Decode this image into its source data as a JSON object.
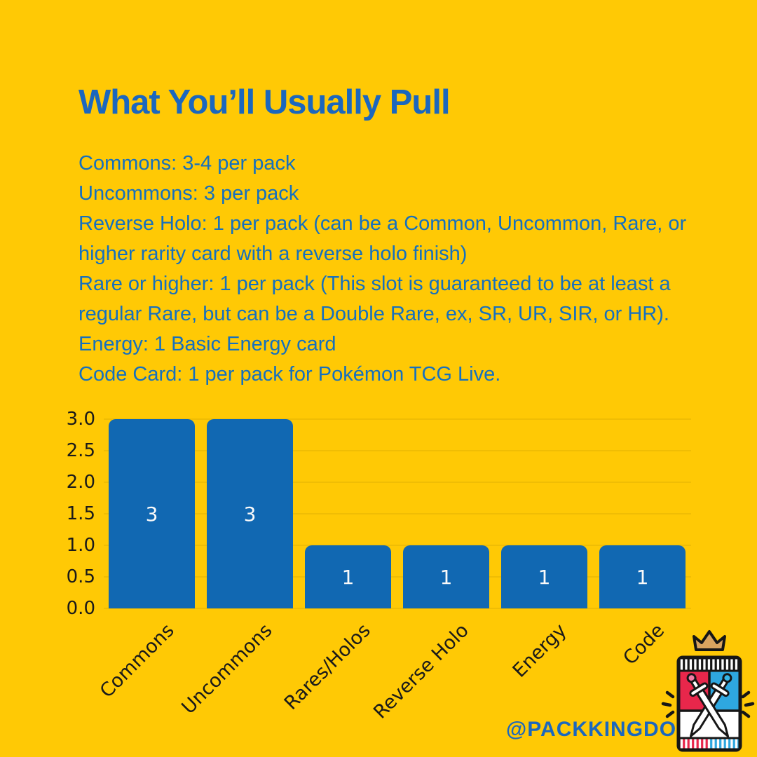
{
  "colors": {
    "background": "#FFC905",
    "title-blue": "#1B67BE",
    "body-blue": "#1570BF",
    "bar-blue": "#1168B2",
    "axis-black": "#1A1A1A",
    "bar-label-white": "#FAFAFA",
    "logo-red": "#E8274B",
    "logo-blue": "#2EA7E0",
    "logo-gold": "#D9A45F"
  },
  "title": "What You’ll Usually Pull",
  "description": {
    "lines": [
      "Commons: 3-4 per pack",
      "Uncommons: 3 per pack",
      "Reverse Holo: 1 per pack (can be a Common, Uncommon, Rare, or",
      "higher rarity card with a reverse holo finish)",
      "Rare or higher: 1 per pack (This slot is guaranteed to be at least a",
      "regular Rare, but can be a Double Rare, ex, SR, UR, SIR, or HR).",
      "Energy: 1 Basic Energy card",
      "Code Card: 1 per pack for Pokémon TCG Live."
    ]
  },
  "chart_data": {
    "type": "bar",
    "title": "",
    "xlabel": "",
    "ylabel": "",
    "categories": [
      "Commons",
      "Uncommons",
      "Rares/Holos",
      "Reverse Holo",
      "Energy",
      "Code"
    ],
    "values": [
      3,
      3,
      1,
      1,
      1,
      1
    ],
    "bar_value_labels": [
      "3",
      "3",
      "1",
      "1",
      "1",
      "1"
    ],
    "ylim": [
      0,
      3
    ],
    "ytick_labels_top_to_bottom": [
      "3.0",
      "2.5",
      "2.0",
      "1.5",
      "1.0",
      "0.5",
      "0.0"
    ],
    "grid": true,
    "legend": false,
    "xlabel_rotation_deg": 45
  },
  "footer": {
    "handle": "@PACKKINGDOM",
    "logo": "pack-kingdom-booster-pack-logo"
  }
}
